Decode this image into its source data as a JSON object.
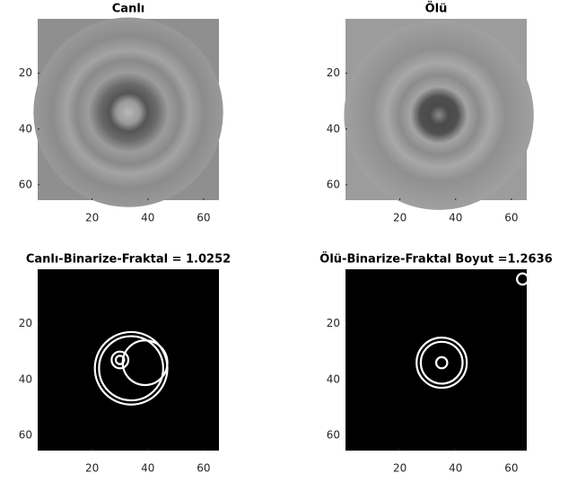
{
  "chart_data": [
    {
      "type": "image",
      "title": "Canlı",
      "xlim": [
        0.5,
        65.5
      ],
      "ylim": [
        0.5,
        65.5
      ],
      "y_reversed": true,
      "xticks": [
        20,
        40,
        60
      ],
      "yticks": [
        20,
        40,
        60
      ]
    },
    {
      "type": "image",
      "title": "Ölü",
      "xlim": [
        0.5,
        65.5
      ],
      "ylim": [
        0.5,
        65.5
      ],
      "y_reversed": true,
      "xticks": [
        20,
        40,
        60
      ],
      "yticks": [
        20,
        40,
        60
      ]
    },
    {
      "type": "image",
      "title": "Canlı-Binarize-Fraktal = 1.0252",
      "xlim": [
        0.5,
        65.5
      ],
      "ylim": [
        0.5,
        65.5
      ],
      "y_reversed": true,
      "xticks": [
        20,
        40,
        60
      ],
      "yticks": [
        20,
        40,
        60
      ]
    },
    {
      "type": "image",
      "title": "Ölü-Binarize-Fraktal Boyut =1.2636",
      "xlim": [
        0.5,
        65.5
      ],
      "ylim": [
        0.5,
        65.5
      ],
      "y_reversed": true,
      "xticks": [
        20,
        40,
        60
      ],
      "yticks": [
        20,
        40,
        60
      ]
    }
  ]
}
